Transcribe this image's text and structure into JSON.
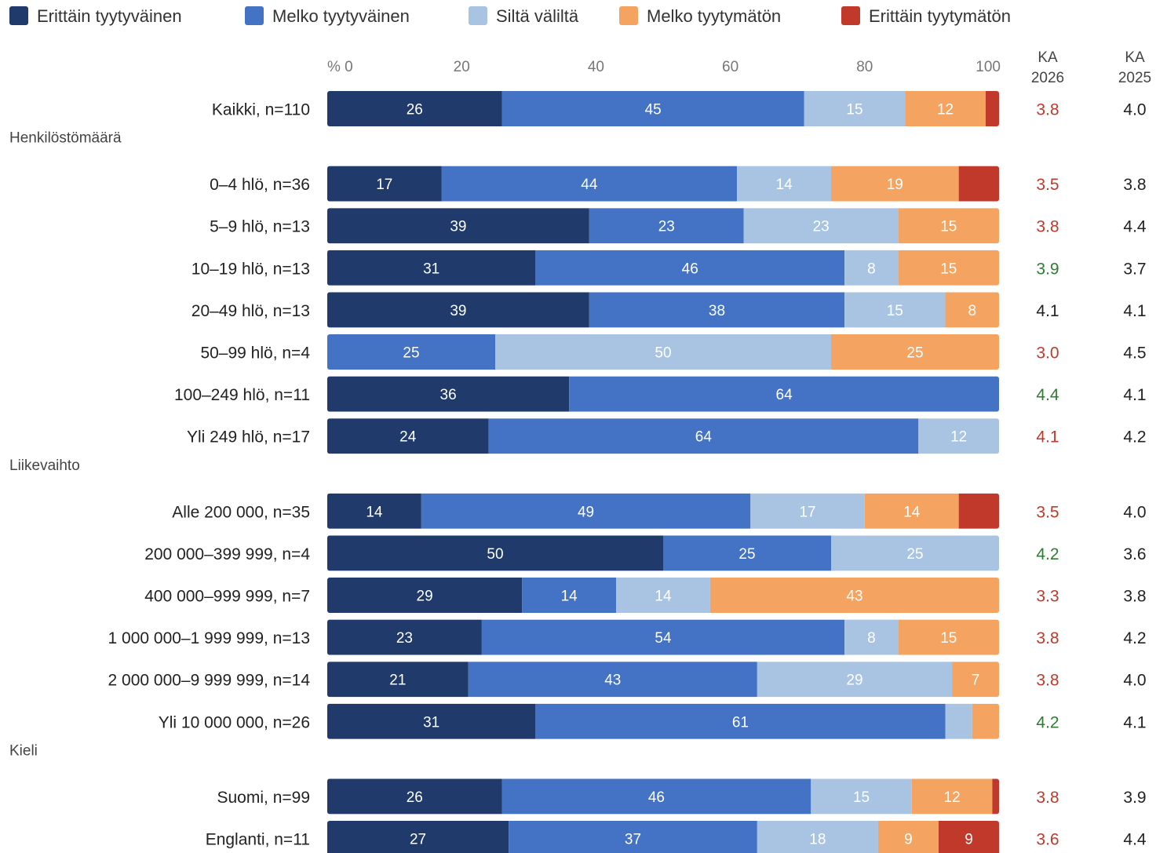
{
  "chart_data": {
    "type": "bar",
    "orientation": "horizontal",
    "stacked": true,
    "xlim": [
      0,
      100
    ],
    "x_ticks": [
      "% 0",
      "20",
      "40",
      "60",
      "80",
      "100"
    ],
    "legend_position": "top",
    "legend": [
      {
        "name": "Erittäin tyytyväinen",
        "color": "#1f3a6b"
      },
      {
        "name": "Melko tyytyväinen",
        "color": "#4472c4"
      },
      {
        "name": "Siltä väliltä",
        "color": "#a9c4e2"
      },
      {
        "name": "Melko tyytymätön",
        "color": "#f4a460"
      },
      {
        "name": "Erittäin tyytymätön",
        "color": "#c0392b"
      }
    ],
    "columns": [
      {
        "line1": "KA",
        "line2": "2026"
      },
      {
        "line1": "KA",
        "line2": "2025"
      }
    ],
    "status_colors": {
      "red": "#c0392b",
      "green": "#2e7d32",
      "neutral": "#222222"
    },
    "groups": [
      {
        "title": "",
        "rows": [
          {
            "label": "Kaikki, n=110",
            "values": [
              26,
              45,
              15,
              12,
              2
            ],
            "labels": [
              "26",
              "45",
              "15",
              "12",
              ""
            ],
            "ka2026": "3.8",
            "ka2026_status": "red",
            "ka2025": "4.0"
          }
        ]
      },
      {
        "title": "Henkilöstömäärä",
        "rows": [
          {
            "label": "0–4 hlö, n=36",
            "values": [
              17,
              44,
              14,
              19,
              6
            ],
            "labels": [
              "17",
              "44",
              "14",
              "19",
              ""
            ],
            "ka2026": "3.5",
            "ka2026_status": "red",
            "ka2025": "3.8"
          },
          {
            "label": "5–9 hlö, n=13",
            "values": [
              39,
              23,
              23,
              15,
              0
            ],
            "labels": [
              "39",
              "23",
              "23",
              "15",
              ""
            ],
            "ka2026": "3.8",
            "ka2026_status": "red",
            "ka2025": "4.4"
          },
          {
            "label": "10–19 hlö, n=13",
            "values": [
              31,
              46,
              8,
              15,
              0
            ],
            "labels": [
              "31",
              "46",
              "8",
              "15",
              ""
            ],
            "ka2026": "3.9",
            "ka2026_status": "green",
            "ka2025": "3.7"
          },
          {
            "label": "20–49 hlö, n=13",
            "values": [
              39,
              38,
              15,
              8,
              0
            ],
            "labels": [
              "39",
              "38",
              "15",
              "8",
              ""
            ],
            "ka2026": "4.1",
            "ka2026_status": "neutral",
            "ka2025": "4.1"
          },
          {
            "label": "50–99 hlö, n=4",
            "values": [
              0,
              25,
              50,
              25,
              0
            ],
            "labels": [
              "",
              "25",
              "50",
              "25",
              ""
            ],
            "ka2026": "3.0",
            "ka2026_status": "red",
            "ka2025": "4.5"
          },
          {
            "label": "100–249 hlö, n=11",
            "values": [
              36,
              64,
              0,
              0,
              0
            ],
            "labels": [
              "36",
              "64",
              "",
              "",
              ""
            ],
            "ka2026": "4.4",
            "ka2026_status": "green",
            "ka2025": "4.1"
          },
          {
            "label": "Yli 249 hlö, n=17",
            "values": [
              24,
              64,
              12,
              0,
              0
            ],
            "labels": [
              "24",
              "64",
              "12",
              "",
              ""
            ],
            "ka2026": "4.1",
            "ka2026_status": "red",
            "ka2025": "4.2"
          }
        ]
      },
      {
        "title": "Liikevaihto",
        "rows": [
          {
            "label": "Alle 200 000, n=35",
            "values": [
              14,
              49,
              17,
              14,
              6
            ],
            "labels": [
              "14",
              "49",
              "17",
              "14",
              ""
            ],
            "ka2026": "3.5",
            "ka2026_status": "red",
            "ka2025": "4.0"
          },
          {
            "label": "200 000–399 999, n=4",
            "values": [
              50,
              25,
              25,
              0,
              0
            ],
            "labels": [
              "50",
              "25",
              "25",
              "",
              ""
            ],
            "ka2026": "4.2",
            "ka2026_status": "green",
            "ka2025": "3.6"
          },
          {
            "label": "400 000–999 999, n=7",
            "values": [
              29,
              14,
              14,
              43,
              0
            ],
            "labels": [
              "29",
              "14",
              "14",
              "43",
              ""
            ],
            "ka2026": "3.3",
            "ka2026_status": "red",
            "ka2025": "3.8"
          },
          {
            "label": "1 000 000–1 999 999, n=13",
            "values": [
              23,
              54,
              8,
              15,
              0
            ],
            "labels": [
              "23",
              "54",
              "8",
              "15",
              ""
            ],
            "ka2026": "3.8",
            "ka2026_status": "red",
            "ka2025": "4.2"
          },
          {
            "label": "2 000 000–9 999 999, n=14",
            "values": [
              21,
              43,
              29,
              7,
              0
            ],
            "labels": [
              "21",
              "43",
              "29",
              "7",
              ""
            ],
            "ka2026": "3.8",
            "ka2026_status": "red",
            "ka2025": "4.0"
          },
          {
            "label": "Yli 10 000 000, n=26",
            "values": [
              31,
              61,
              4,
              4,
              0
            ],
            "labels": [
              "31",
              "61",
              "",
              "",
              ""
            ],
            "ka2026": "4.2",
            "ka2026_status": "green",
            "ka2025": "4.1"
          }
        ]
      },
      {
        "title": "Kieli",
        "rows": [
          {
            "label": "Suomi, n=99",
            "values": [
              26,
              46,
              15,
              12,
              1
            ],
            "labels": [
              "26",
              "46",
              "15",
              "12",
              ""
            ],
            "ka2026": "3.8",
            "ka2026_status": "red",
            "ka2025": "3.9"
          },
          {
            "label": "Englanti, n=11",
            "values": [
              27,
              37,
              18,
              9,
              9
            ],
            "labels": [
              "27",
              "37",
              "18",
              "9",
              "9"
            ],
            "ka2026": "3.6",
            "ka2026_status": "red",
            "ka2025": "4.4"
          }
        ]
      }
    ]
  }
}
